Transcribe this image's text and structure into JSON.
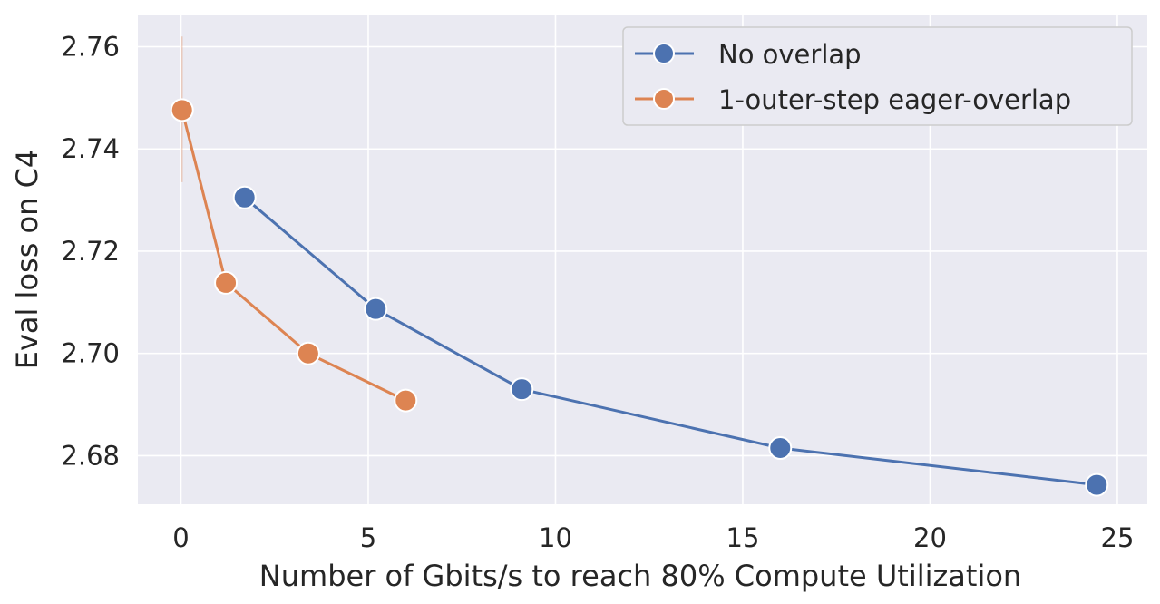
{
  "chart_data": {
    "type": "line",
    "title": "",
    "xlabel": "Number of Gbits/s to reach 80% Compute Utilization",
    "ylabel": "Eval loss on C4",
    "xlim": [
      -1.15,
      25.8
    ],
    "ylim": [
      2.6705,
      2.7663
    ],
    "xticks": [
      0,
      5,
      10,
      15,
      20,
      25
    ],
    "yticks": [
      2.68,
      2.7,
      2.72,
      2.74,
      2.76
    ],
    "xtick_labels": [
      "0",
      "5",
      "10",
      "15",
      "20",
      "25"
    ],
    "ytick_labels": [
      "2.68",
      "2.70",
      "2.72",
      "2.74",
      "2.76"
    ],
    "grid": true,
    "legend_position": "top-right",
    "series": [
      {
        "name": "No overlap",
        "color": "#4c72b0",
        "x": [
          1.7,
          5.2,
          9.1,
          16.0,
          24.45
        ],
        "y": [
          2.7305,
          2.7087,
          2.693,
          2.6815,
          2.6743
        ]
      },
      {
        "name": "1-outer-step eager-overlap",
        "color": "#dd8452",
        "x": [
          0.03,
          1.2,
          3.4,
          6.0
        ],
        "y": [
          2.7476,
          2.7138,
          2.7,
          2.6908
        ],
        "error_bar": {
          "point_index": 0,
          "low": 2.7335,
          "high": 2.762
        }
      }
    ]
  },
  "theme": {
    "plot_background": "#eaeaf2",
    "grid_color": "#ffffff",
    "text_color": "#262626"
  }
}
